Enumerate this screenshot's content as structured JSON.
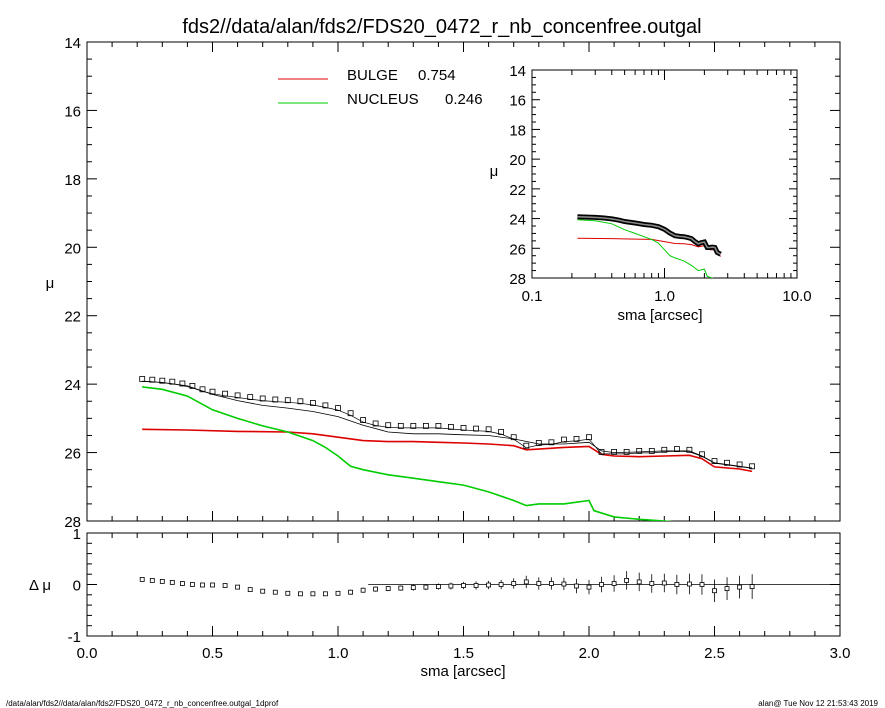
{
  "title": "fds2//data/alan/fds2/FDS20_0472_r_nb_concenfree.outgal",
  "footer_left": "/data/alan/fds2//data/alan/fds2/FDS20_0472_r_nb_concenfree.outgal_1dprof",
  "footer_right": "alan@  Tue Nov 12 21:53:43 2019",
  "colors": {
    "data": "#000000",
    "bulge": "#dd0000",
    "nucleus": "#00cc00",
    "axes": "#000000"
  },
  "chart_data": [
    {
      "id": "main",
      "type": "line",
      "ylabel": "μ",
      "xlim": [
        0.0,
        3.0
      ],
      "ylim": [
        28,
        14
      ],
      "yticks": [
        "14",
        "16",
        "18",
        "20",
        "22",
        "24",
        "26",
        "28"
      ],
      "legend": {
        "placement": "top-center",
        "entries": [
          {
            "name": "BULGE",
            "value": "0.754",
            "color": "#dd0000"
          },
          {
            "name": "NUCLEUS",
            "value": "0.246",
            "color": "#00cc00"
          }
        ]
      },
      "series": [
        {
          "name": "data",
          "marker": "square",
          "x": [
            0.22,
            0.26,
            0.3,
            0.34,
            0.38,
            0.42,
            0.46,
            0.5,
            0.55,
            0.6,
            0.65,
            0.7,
            0.75,
            0.8,
            0.85,
            0.9,
            0.95,
            1.0,
            1.05,
            1.1,
            1.15,
            1.2,
            1.25,
            1.3,
            1.35,
            1.4,
            1.45,
            1.5,
            1.55,
            1.6,
            1.65,
            1.7,
            1.75,
            1.8,
            1.85,
            1.9,
            1.95,
            2.0,
            2.05,
            2.1,
            2.15,
            2.2,
            2.25,
            2.3,
            2.35,
            2.4,
            2.45,
            2.5,
            2.55,
            2.6,
            2.65
          ],
          "y": [
            23.85,
            23.87,
            23.9,
            23.93,
            23.98,
            24.05,
            24.15,
            24.22,
            24.28,
            24.33,
            24.38,
            24.42,
            24.45,
            24.47,
            24.5,
            24.55,
            24.62,
            24.7,
            24.85,
            25.05,
            25.15,
            25.2,
            25.22,
            25.22,
            25.22,
            25.22,
            25.25,
            25.28,
            25.3,
            25.32,
            25.4,
            25.55,
            25.8,
            25.72,
            25.7,
            25.62,
            25.6,
            25.55,
            25.98,
            25.98,
            25.98,
            25.95,
            25.95,
            25.92,
            25.9,
            25.92,
            26.05,
            26.25,
            26.3,
            26.35,
            26.4
          ]
        },
        {
          "name": "model",
          "x": [
            0.22,
            0.3,
            0.4,
            0.5,
            0.6,
            0.7,
            0.8,
            0.9,
            1.0,
            1.1,
            1.2,
            1.3,
            1.4,
            1.5,
            1.6,
            1.7,
            1.8,
            1.9,
            2.0,
            2.05,
            2.1,
            2.2,
            2.3,
            2.4,
            2.45,
            2.5,
            2.6,
            2.65
          ],
          "y": [
            23.92,
            23.95,
            24.05,
            24.3,
            24.48,
            24.62,
            24.7,
            24.8,
            24.95,
            25.2,
            25.4,
            25.45,
            25.45,
            25.48,
            25.5,
            25.6,
            25.75,
            25.75,
            25.7,
            25.95,
            26.0,
            25.98,
            25.95,
            25.95,
            26.1,
            26.3,
            26.4,
            26.45
          ]
        },
        {
          "name": "BULGE",
          "color": "#dd0000",
          "x": [
            0.22,
            0.4,
            0.6,
            0.8,
            0.9,
            1.0,
            1.1,
            1.2,
            1.3,
            1.4,
            1.5,
            1.6,
            1.7,
            1.75,
            1.8,
            1.9,
            2.0,
            2.05,
            2.1,
            2.2,
            2.3,
            2.4,
            2.45,
            2.5,
            2.6,
            2.65
          ],
          "y": [
            25.32,
            25.34,
            25.38,
            25.4,
            25.45,
            25.55,
            25.65,
            25.68,
            25.68,
            25.7,
            25.72,
            25.75,
            25.8,
            25.92,
            25.9,
            25.85,
            25.82,
            26.05,
            26.1,
            26.12,
            26.1,
            26.08,
            26.18,
            26.42,
            26.48,
            26.55
          ]
        },
        {
          "name": "NUCLEUS",
          "color": "#00cc00",
          "x": [
            0.22,
            0.3,
            0.4,
            0.5,
            0.6,
            0.7,
            0.8,
            0.9,
            0.95,
            1.0,
            1.05,
            1.1,
            1.2,
            1.3,
            1.4,
            1.5,
            1.6,
            1.7,
            1.75,
            1.8,
            1.9,
            2.0,
            2.02,
            2.1,
            2.2,
            2.3,
            2.38
          ],
          "y": [
            24.08,
            24.15,
            24.35,
            24.75,
            25.0,
            25.22,
            25.4,
            25.65,
            25.85,
            26.1,
            26.4,
            26.5,
            26.65,
            26.75,
            26.85,
            26.95,
            27.15,
            27.4,
            27.55,
            27.5,
            27.5,
            27.4,
            27.7,
            27.88,
            27.95,
            28.0,
            28.05
          ]
        }
      ]
    },
    {
      "id": "residual",
      "type": "scatter",
      "xlabel": "sma [arcsec]",
      "ylabel": "Δ μ",
      "xlim": [
        0.0,
        3.0
      ],
      "ylim": [
        -1,
        1
      ],
      "xticks": [
        "0.0",
        "0.5",
        "1.0",
        "1.5",
        "2.0",
        "2.5",
        "3.0"
      ],
      "yticks": [
        "1",
        "0",
        "-1"
      ],
      "points": {
        "x": [
          0.22,
          0.26,
          0.3,
          0.34,
          0.38,
          0.42,
          0.46,
          0.5,
          0.55,
          0.6,
          0.65,
          0.7,
          0.75,
          0.8,
          0.85,
          0.9,
          0.95,
          1.0,
          1.05,
          1.1,
          1.15,
          1.2,
          1.25,
          1.3,
          1.35,
          1.4,
          1.45,
          1.5,
          1.55,
          1.6,
          1.65,
          1.7,
          1.75,
          1.8,
          1.85,
          1.9,
          1.95,
          2.0,
          2.05,
          2.1,
          2.15,
          2.2,
          2.25,
          2.3,
          2.35,
          2.4,
          2.45,
          2.5,
          2.55,
          2.6,
          2.65
        ],
        "y": [
          0.1,
          0.08,
          0.06,
          0.04,
          0.02,
          0.0,
          -0.01,
          -0.01,
          -0.02,
          -0.05,
          -0.1,
          -0.13,
          -0.15,
          -0.17,
          -0.18,
          -0.18,
          -0.18,
          -0.17,
          -0.15,
          -0.11,
          -0.09,
          -0.08,
          -0.07,
          -0.06,
          -0.05,
          -0.04,
          -0.03,
          -0.02,
          -0.02,
          -0.01,
          0.0,
          0.02,
          0.05,
          0.02,
          0.02,
          0.01,
          -0.03,
          -0.05,
          0.0,
          0.02,
          0.08,
          0.05,
          0.02,
          0.03,
          0.0,
          0.01,
          0.0,
          -0.12,
          -0.08,
          -0.05,
          -0.04
        ],
        "err": [
          0.02,
          0.02,
          0.02,
          0.02,
          0.02,
          0.02,
          0.02,
          0.02,
          0.02,
          0.02,
          0.02,
          0.02,
          0.03,
          0.03,
          0.03,
          0.03,
          0.04,
          0.04,
          0.05,
          0.05,
          0.05,
          0.05,
          0.05,
          0.06,
          0.06,
          0.06,
          0.07,
          0.07,
          0.08,
          0.08,
          0.09,
          0.1,
          0.12,
          0.12,
          0.12,
          0.12,
          0.14,
          0.14,
          0.15,
          0.16,
          0.18,
          0.18,
          0.18,
          0.18,
          0.19,
          0.2,
          0.2,
          0.22,
          0.22,
          0.22,
          0.24
        ]
      },
      "reference_line": {
        "y": 0,
        "x_from": 1.12,
        "x_to": 3.0
      }
    },
    {
      "id": "inset",
      "type": "line",
      "xlabel": "sma [arcsec]",
      "ylabel": "μ",
      "xscale": "log",
      "xlim": [
        0.1,
        10.0
      ],
      "ylim": [
        28,
        14
      ],
      "xticks": [
        "0.1",
        "1.0",
        "10.0"
      ],
      "yticks": [
        "14",
        "16",
        "18",
        "20",
        "22",
        "24",
        "26",
        "28"
      ],
      "series": [
        {
          "name": "data",
          "x": [
            0.22,
            0.26,
            0.3,
            0.35,
            0.4,
            0.45,
            0.5,
            0.6,
            0.7,
            0.8,
            0.9,
            1.0,
            1.1,
            1.2,
            1.3,
            1.4,
            1.5,
            1.6,
            1.7,
            1.8,
            1.9,
            2.0,
            2.1,
            2.2,
            2.3,
            2.4,
            2.5,
            2.65
          ],
          "y": [
            23.88,
            23.9,
            23.92,
            23.96,
            24.02,
            24.1,
            24.2,
            24.3,
            24.4,
            24.45,
            24.55,
            24.72,
            24.98,
            25.15,
            25.2,
            25.22,
            25.28,
            25.35,
            25.55,
            25.7,
            25.62,
            25.58,
            25.95,
            25.95,
            25.92,
            25.95,
            26.28,
            26.4
          ]
        },
        {
          "name": "BULGE",
          "color": "#dd0000",
          "x": [
            0.22,
            0.4,
            0.6,
            0.8,
            1.0,
            1.2,
            1.4,
            1.6,
            1.8,
            2.0,
            2.2,
            2.4,
            2.65
          ],
          "y": [
            25.32,
            25.35,
            25.38,
            25.4,
            25.55,
            25.68,
            25.7,
            25.75,
            25.9,
            25.82,
            26.1,
            26.1,
            26.55
          ]
        },
        {
          "name": "NUCLEUS",
          "color": "#00cc00",
          "x": [
            0.22,
            0.3,
            0.4,
            0.5,
            0.6,
            0.7,
            0.8,
            0.9,
            1.0,
            1.1,
            1.2,
            1.4,
            1.6,
            1.8,
            2.0,
            2.1,
            2.2,
            2.38
          ],
          "y": [
            24.08,
            24.15,
            24.35,
            24.75,
            25.0,
            25.22,
            25.4,
            25.65,
            26.1,
            26.5,
            26.65,
            26.85,
            27.15,
            27.5,
            27.4,
            27.88,
            27.95,
            28.05
          ]
        }
      ]
    }
  ]
}
